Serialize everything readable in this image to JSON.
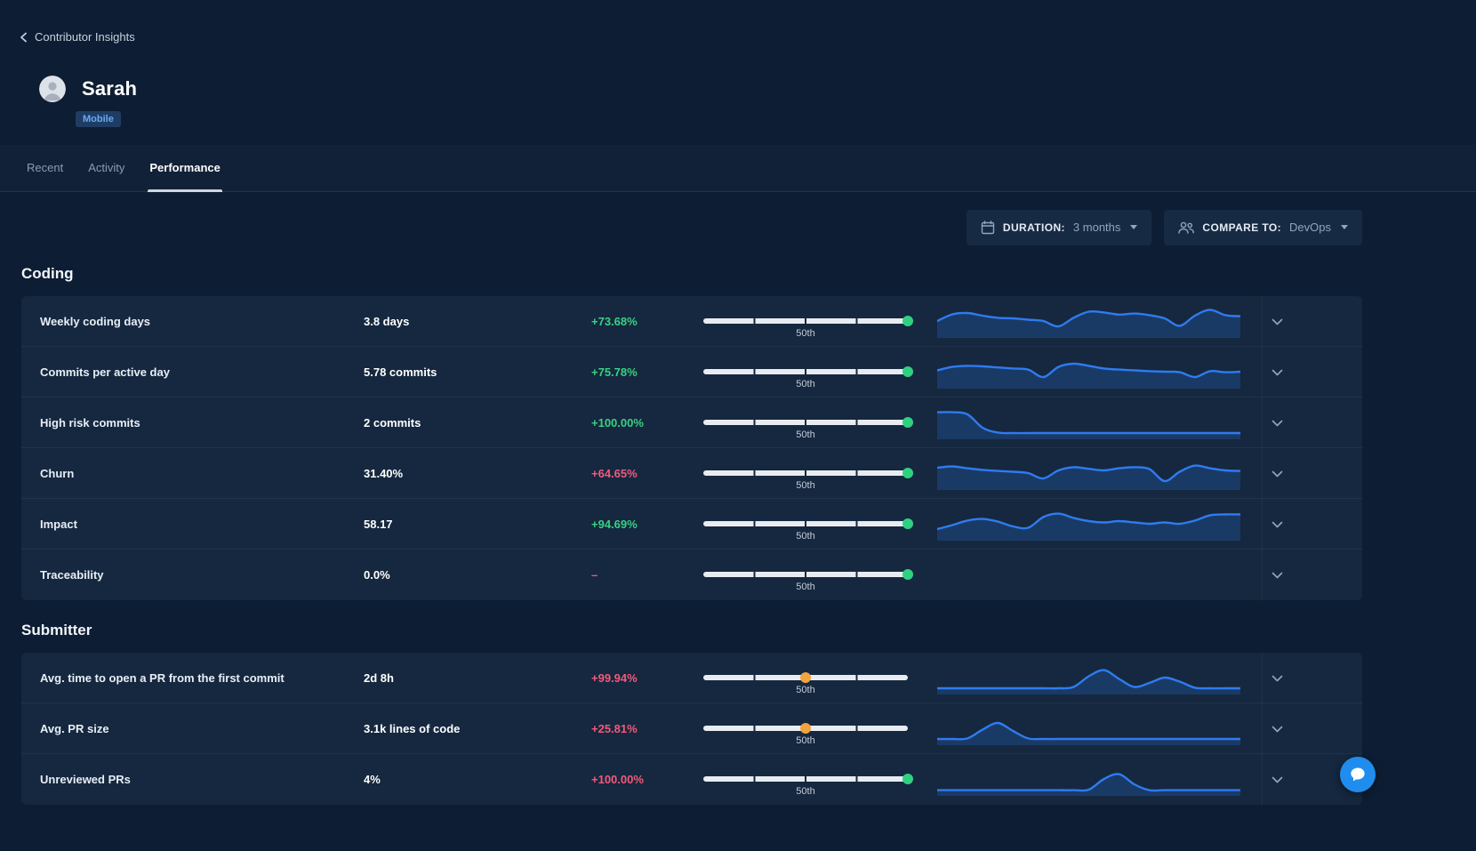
{
  "header": {
    "back_label": "Contributor Insights",
    "user_name": "Sarah",
    "team_badge": "Mobile"
  },
  "tabs": [
    {
      "label": "Recent",
      "active": false
    },
    {
      "label": "Activity",
      "active": false
    },
    {
      "label": "Performance",
      "active": true
    }
  ],
  "filters": {
    "duration": {
      "label": "DURATION:",
      "value": "3 months"
    },
    "compare": {
      "label": "COMPARE TO:",
      "value": "DevOps"
    }
  },
  "icons": {
    "back": "chevron-left-icon",
    "duration": "calendar-icon",
    "compare": "users-icon",
    "dropdown": "caret-down-icon",
    "row_expand": "chevron-down-icon",
    "chat": "chat-bubble-icon"
  },
  "colors": {
    "positive_green": "#38d183",
    "negative_red": "#f4587a",
    "marker_green": "#2fd180",
    "marker_orange": "#f0a33f",
    "sparkline_blue": "#2f7bf0",
    "badge_blue": "#6aa7f8",
    "chat_blue": "#1f8ded"
  },
  "sections": [
    {
      "title": "Coding",
      "rows": [
        {
          "metric": "Weekly coding days",
          "value": "3.8 days",
          "delta": "+73.68%",
          "delta_color": "green",
          "percentile_label": "50th",
          "marker_percent": 100,
          "marker_color": "green",
          "spark": [
            0.5,
            0.75,
            0.8,
            0.7,
            0.62,
            0.6,
            0.55,
            0.5,
            0.3,
            0.62,
            0.85,
            0.82,
            0.74,
            0.78,
            0.72,
            0.6,
            0.32,
            0.7,
            0.92,
            0.72,
            0.68
          ]
        },
        {
          "metric": "Commits per active day",
          "value": "5.78 commits",
          "delta": "+75.78%",
          "delta_color": "green",
          "percentile_label": "50th",
          "marker_percent": 100,
          "marker_color": "green",
          "spark": [
            0.55,
            0.68,
            0.72,
            0.7,
            0.66,
            0.62,
            0.58,
            0.3,
            0.68,
            0.8,
            0.72,
            0.62,
            0.58,
            0.55,
            0.52,
            0.5,
            0.48,
            0.3,
            0.52,
            0.48,
            0.5
          ]
        },
        {
          "metric": "High risk commits",
          "value": "2 commits",
          "delta": "+100.00%",
          "delta_color": "green",
          "percentile_label": "50th",
          "marker_percent": 100,
          "marker_color": "green",
          "spark": [
            0.88,
            0.88,
            0.8,
            0.3,
            0.12,
            0.1,
            0.1,
            0.1,
            0.1,
            0.1,
            0.1,
            0.1,
            0.1,
            0.1,
            0.1,
            0.1,
            0.1,
            0.1,
            0.1,
            0.1,
            0.1
          ]
        },
        {
          "metric": "Churn",
          "value": "31.40%",
          "delta": "+64.65%",
          "delta_color": "red",
          "percentile_label": "50th",
          "marker_percent": 100,
          "marker_color": "green",
          "spark": [
            0.7,
            0.75,
            0.68,
            0.62,
            0.58,
            0.55,
            0.5,
            0.3,
            0.6,
            0.72,
            0.66,
            0.6,
            0.68,
            0.72,
            0.65,
            0.2,
            0.55,
            0.78,
            0.68,
            0.6,
            0.58
          ]
        },
        {
          "metric": "Impact",
          "value": "58.17",
          "delta": "+94.69%",
          "delta_color": "green",
          "percentile_label": "50th",
          "marker_percent": 100,
          "marker_color": "green",
          "spark": [
            0.3,
            0.45,
            0.62,
            0.68,
            0.58,
            0.4,
            0.35,
            0.75,
            0.88,
            0.72,
            0.6,
            0.55,
            0.6,
            0.55,
            0.5,
            0.55,
            0.5,
            0.62,
            0.82,
            0.85,
            0.85
          ]
        },
        {
          "metric": "Traceability",
          "value": "0.0%",
          "delta": "–",
          "delta_color": "red",
          "percentile_label": "50th",
          "marker_percent": 100,
          "marker_color": "green",
          "spark": null
        }
      ]
    },
    {
      "title": "Submitter",
      "rows": [
        {
          "metric": "Avg. time to open a PR from the first commit",
          "value": "2d 8h",
          "delta": "+99.94%",
          "delta_color": "red",
          "percentile_label": "50th",
          "marker_percent": 50,
          "marker_color": "orange",
          "spark": [
            0.1,
            0.1,
            0.1,
            0.1,
            0.1,
            0.1,
            0.1,
            0.1,
            0.1,
            0.15,
            0.55,
            0.78,
            0.45,
            0.15,
            0.3,
            0.5,
            0.35,
            0.12,
            0.1,
            0.1,
            0.1
          ]
        },
        {
          "metric": "Avg. PR size",
          "value": "3.1k lines of code",
          "delta": "+25.81%",
          "delta_color": "red",
          "percentile_label": "50th",
          "marker_percent": 50,
          "marker_color": "orange",
          "spark": [
            0.1,
            0.1,
            0.12,
            0.45,
            0.7,
            0.4,
            0.12,
            0.1,
            0.1,
            0.1,
            0.1,
            0.1,
            0.1,
            0.1,
            0.1,
            0.1,
            0.1,
            0.1,
            0.1,
            0.1,
            0.1
          ]
        },
        {
          "metric": "Unreviewed PRs",
          "value": "4%",
          "delta": "+100.00%",
          "delta_color": "red",
          "percentile_label": "50th",
          "marker_percent": 100,
          "marker_color": "green",
          "spark": [
            0.08,
            0.08,
            0.08,
            0.08,
            0.08,
            0.08,
            0.08,
            0.08,
            0.08,
            0.08,
            0.1,
            0.5,
            0.68,
            0.3,
            0.08,
            0.08,
            0.08,
            0.08,
            0.08,
            0.08,
            0.08
          ]
        }
      ]
    }
  ]
}
